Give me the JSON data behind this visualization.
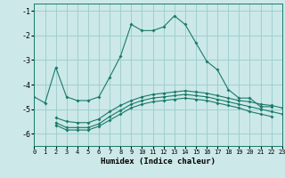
{
  "xlabel": "Humidex (Indice chaleur)",
  "xlim": [
    0,
    23
  ],
  "ylim": [
    -6.5,
    -0.7
  ],
  "yticks": [
    -1,
    -2,
    -3,
    -4,
    -5,
    -6
  ],
  "xticks": [
    0,
    1,
    2,
    3,
    4,
    5,
    6,
    7,
    8,
    9,
    10,
    11,
    12,
    13,
    14,
    15,
    16,
    17,
    18,
    19,
    20,
    21,
    22,
    23
  ],
  "bg_color": "#cce8e8",
  "grid_color": "#99cccc",
  "line_color": "#1a7a6a",
  "curve1_x": [
    0,
    1,
    2,
    3,
    4,
    5,
    6,
    7,
    8,
    9,
    10,
    11,
    12,
    13,
    14,
    15,
    16,
    17,
    18,
    19,
    20,
    21,
    22
  ],
  "curve1_y": [
    -4.5,
    -4.75,
    -3.3,
    -4.5,
    -4.65,
    -4.65,
    -4.5,
    -3.7,
    -2.85,
    -1.55,
    -1.8,
    -1.8,
    -1.65,
    -1.2,
    -1.55,
    -2.3,
    -3.05,
    -3.4,
    -4.2,
    -4.55,
    -4.55,
    -4.9,
    -4.9
  ],
  "curve2_x": [
    2,
    3,
    4,
    5,
    6,
    7,
    8,
    9,
    10,
    11,
    12,
    13,
    14,
    15,
    16,
    17,
    18,
    19,
    20,
    21,
    22,
    23
  ],
  "curve2_y": [
    -5.35,
    -5.5,
    -5.55,
    -5.55,
    -5.4,
    -5.1,
    -4.85,
    -4.65,
    -4.5,
    -4.4,
    -4.35,
    -4.3,
    -4.25,
    -4.3,
    -4.35,
    -4.45,
    -4.55,
    -4.65,
    -4.7,
    -4.8,
    -4.85,
    -4.95
  ],
  "curve3_x": [
    2,
    3,
    4,
    5,
    6,
    7,
    8,
    9,
    10,
    11,
    12,
    13,
    14,
    15,
    16,
    17,
    18,
    19,
    20,
    21,
    22,
    23
  ],
  "curve3_y": [
    -5.55,
    -5.75,
    -5.75,
    -5.75,
    -5.6,
    -5.3,
    -5.05,
    -4.8,
    -4.65,
    -4.55,
    -4.5,
    -4.45,
    -4.4,
    -4.45,
    -4.5,
    -4.6,
    -4.7,
    -4.8,
    -4.9,
    -5.0,
    -5.1,
    -5.2
  ],
  "curve4_x": [
    2,
    3,
    4,
    5,
    6,
    7,
    8,
    9,
    10,
    11,
    12,
    13,
    14,
    15,
    16,
    17,
    18,
    19,
    20,
    21,
    22
  ],
  "curve4_y": [
    -5.65,
    -5.85,
    -5.85,
    -5.85,
    -5.7,
    -5.45,
    -5.2,
    -4.95,
    -4.8,
    -4.7,
    -4.65,
    -4.6,
    -4.55,
    -4.6,
    -4.65,
    -4.75,
    -4.85,
    -4.95,
    -5.1,
    -5.2,
    -5.3
  ]
}
